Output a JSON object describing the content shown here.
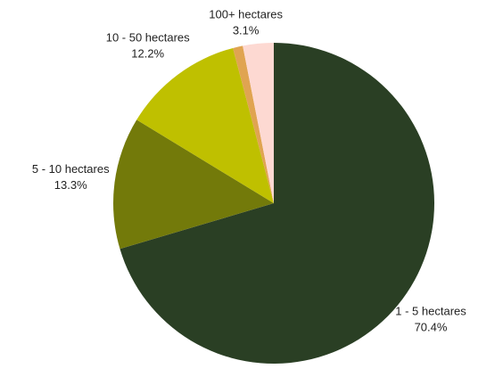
{
  "chart_data": {
    "type": "pie",
    "categories": [
      "1 - 5 hectares",
      "5 - 10 hectares",
      "10 - 50 hectares",
      null,
      "100+ hectares"
    ],
    "values": [
      70.4,
      13.3,
      12.2,
      1.0,
      3.1
    ],
    "value_labels": [
      "70.4%",
      "13.3%",
      "12.2%",
      null,
      "3.1%"
    ],
    "colors": [
      "#2a3f24",
      "#737a0a",
      "#bfc000",
      "#e0a451",
      "#fdd9d2"
    ]
  }
}
